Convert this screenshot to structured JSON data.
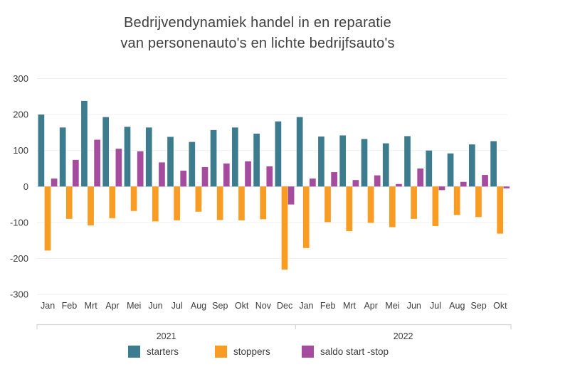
{
  "header": {
    "title_line1": "Bedrijvendynamiek handel in en reparatie",
    "title_line2": "van personenauto's en lichte bedrijfsauto's"
  },
  "colors": {
    "starters": "#3d7c8e",
    "stoppers": "#f89c24",
    "saldo": "#a64c9e",
    "grid": "#efefef",
    "zero_line": "#d9d9d9",
    "bracket": "#d6d6d6",
    "axis_text": "#3c3c3c",
    "background": "#ffffff"
  },
  "chart_data": {
    "type": "bar",
    "title": "Bedrijvendynamiek handel in en reparatie van personenauto's en lichte bedrijfsauto's",
    "categories": [
      "Jan",
      "Feb",
      "Mrt",
      "Apr",
      "Mei",
      "Jun",
      "Jul",
      "Aug",
      "Sep",
      "Okt",
      "Nov",
      "Dec",
      "Jan",
      "Feb",
      "Mrt",
      "Apr",
      "Mei",
      "Jun",
      "Jul",
      "Aug",
      "Sep",
      "Okt"
    ],
    "year_groups": [
      {
        "label": "2021",
        "from": 0,
        "to": 11
      },
      {
        "label": "2022",
        "from": 12,
        "to": 21
      }
    ],
    "series": [
      {
        "name": "starters",
        "color": "#3d7c8e",
        "values": [
          200,
          164,
          238,
          193,
          166,
          164,
          138,
          124,
          157,
          164,
          147,
          181,
          193,
          139,
          142,
          132,
          120,
          140,
          100,
          92,
          117,
          126
        ]
      },
      {
        "name": "stoppers",
        "color": "#f89c24",
        "values": [
          -178,
          -90,
          -108,
          -88,
          -68,
          -97,
          -94,
          -70,
          -93,
          -94,
          -91,
          -231,
          -171,
          -99,
          -124,
          -101,
          -113,
          -90,
          -110,
          -79,
          -85,
          -131
        ]
      },
      {
        "name": "saldo start -stop",
        "color": "#a64c9e",
        "values": [
          22,
          74,
          130,
          105,
          98,
          67,
          44,
          54,
          64,
          70,
          56,
          -50,
          22,
          40,
          18,
          31,
          7,
          50,
          -10,
          13,
          32,
          -5
        ]
      }
    ],
    "xlabel": "",
    "ylabel": "",
    "ylim": [
      -300,
      300
    ],
    "yticks": [
      300,
      200,
      100,
      0,
      -100,
      -200,
      -300
    ],
    "grid": true,
    "legend_position": "bottom"
  }
}
